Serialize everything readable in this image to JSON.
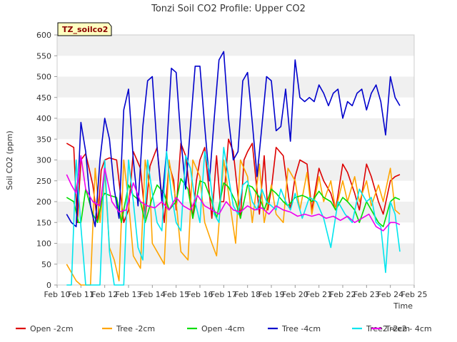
{
  "chart_data": {
    "type": "line",
    "title": "Tonzi Soil CO2 Profile: Upper CO2",
    "xlabel": "Time",
    "ylabel": "Soil CO2 (ppm)",
    "badge": "TZ_soilco2",
    "ylim": [
      0,
      600
    ],
    "y_ticks": [
      0,
      50,
      100,
      150,
      200,
      250,
      300,
      350,
      400,
      450,
      500,
      550,
      600
    ],
    "xlim": [
      10,
      25
    ],
    "x_ticks": [
      10,
      11,
      12,
      13,
      14,
      15,
      16,
      17,
      18,
      19,
      20,
      21,
      22,
      23,
      24,
      25
    ],
    "x_tick_labels": [
      "Feb 10",
      "Feb 11",
      "Feb 12",
      "Feb 13",
      "Feb 14",
      "Feb 15",
      "Feb 16",
      "Feb 17",
      "Feb 18",
      "Feb 19",
      "Feb 20",
      "Feb 21",
      "Feb 22",
      "Feb 23",
      "Feb 24",
      "Feb 25"
    ],
    "grid": "horizontal bands",
    "legend_position": "bottom",
    "series": [
      {
        "name": "Open -2cm",
        "color": "#dd0000",
        "x": [
          10.4,
          10.7,
          10.85,
          11.0,
          11.2,
          11.5,
          11.7,
          11.85,
          12.0,
          12.2,
          12.5,
          12.8,
          13.0,
          13.2,
          13.5,
          13.7,
          13.9,
          14.0,
          14.2,
          14.5,
          14.7,
          14.9,
          15.0,
          15.2,
          15.4,
          15.7,
          15.85,
          16.0,
          16.2,
          16.5,
          16.7,
          16.85,
          17.0,
          17.2,
          17.4,
          17.7,
          17.85,
          18.0,
          18.2,
          18.5,
          18.7,
          18.85,
          19.0,
          19.2,
          19.5,
          19.8,
          20.0,
          20.2,
          20.5,
          20.7,
          21.0,
          21.2,
          21.5,
          21.7,
          22.0,
          22.2,
          22.5,
          22.7,
          23.0,
          23.2,
          23.5,
          23.7,
          24.0,
          24.2,
          24.4
        ],
        "y": [
          340,
          330,
          150,
          300,
          315,
          240,
          150,
          275,
          300,
          305,
          300,
          150,
          180,
          320,
          280,
          160,
          285,
          300,
          330,
          150,
          290,
          250,
          180,
          340,
          310,
          160,
          250,
          300,
          330,
          160,
          310,
          200,
          200,
          350,
          320,
          160,
          300,
          320,
          340,
          170,
          310,
          180,
          230,
          330,
          310,
          180,
          260,
          300,
          290,
          180,
          280,
          250,
          220,
          180,
          290,
          270,
          220,
          180,
          290,
          260,
          200,
          170,
          250,
          260,
          265
        ]
      },
      {
        "name": "Tree -2cm",
        "color": "#ffa500",
        "x": [
          10.4,
          10.6,
          10.8,
          11.0,
          11.2,
          11.4,
          11.6,
          11.8,
          12.0,
          12.2,
          12.4,
          12.6,
          12.8,
          13.0,
          13.2,
          13.5,
          13.7,
          13.9,
          14.0,
          14.2,
          14.5,
          14.7,
          15.0,
          15.2,
          15.5,
          15.7,
          16.0,
          16.2,
          16.5,
          16.7,
          17.0,
          17.2,
          17.5,
          17.7,
          18.0,
          18.2,
          18.5,
          18.7,
          19.0,
          19.2,
          19.5,
          19.7,
          20.0,
          20.2,
          20.5,
          20.7,
          21.0,
          21.2,
          21.5,
          21.7,
          22.0,
          22.2,
          22.5,
          22.7,
          23.0,
          23.2,
          23.5,
          23.7,
          24.0,
          24.2,
          24.4
        ],
        "y": [
          50,
          30,
          10,
          0,
          0,
          0,
          280,
          150,
          270,
          90,
          60,
          10,
          300,
          200,
          70,
          40,
          300,
          230,
          100,
          80,
          50,
          300,
          200,
          80,
          60,
          300,
          260,
          150,
          100,
          70,
          300,
          220,
          100,
          300,
          260,
          150,
          290,
          150,
          240,
          170,
          150,
          280,
          250,
          180,
          270,
          170,
          260,
          200,
          250,
          180,
          250,
          200,
          260,
          200,
          250,
          190,
          240,
          200,
          280,
          180,
          170
        ]
      },
      {
        "name": "Open -4cm",
        "color": "#00dd00",
        "x": [
          10.4,
          10.7,
          10.9,
          11.0,
          11.2,
          11.5,
          11.7,
          11.9,
          12.0,
          12.2,
          12.5,
          12.7,
          13.0,
          13.2,
          13.5,
          13.7,
          14.0,
          14.2,
          14.5,
          14.7,
          15.0,
          15.2,
          15.5,
          15.7,
          16.0,
          16.2,
          16.5,
          16.7,
          17.0,
          17.2,
          17.5,
          17.7,
          18.0,
          18.2,
          18.5,
          18.7,
          19.0,
          19.2,
          19.5,
          19.7,
          20.0,
          20.3,
          20.5,
          20.7,
          21.0,
          21.2,
          21.5,
          21.7,
          22.0,
          22.2,
          22.5,
          22.7,
          23.0,
          23.2,
          23.5,
          23.7,
          24.0,
          24.2,
          24.4
        ],
        "y": [
          210,
          200,
          150,
          150,
          230,
          170,
          150,
          210,
          220,
          215,
          210,
          150,
          240,
          215,
          200,
          150,
          210,
          240,
          220,
          180,
          200,
          255,
          230,
          160,
          250,
          245,
          200,
          160,
          245,
          235,
          200,
          160,
          240,
          235,
          210,
          180,
          230,
          220,
          200,
          190,
          210,
          215,
          210,
          200,
          225,
          210,
          200,
          180,
          210,
          200,
          180,
          150,
          200,
          180,
          150,
          140,
          200,
          210,
          205
        ]
      },
      {
        "name": "Tree -4cm",
        "color": "#0000cc",
        "x": [
          10.4,
          10.6,
          10.8,
          11.0,
          11.2,
          11.4,
          11.6,
          11.8,
          12.0,
          12.2,
          12.4,
          12.6,
          12.8,
          13.0,
          13.2,
          13.4,
          13.6,
          13.8,
          14.0,
          14.2,
          14.4,
          14.6,
          14.8,
          15.0,
          15.2,
          15.4,
          15.6,
          15.8,
          16.0,
          16.2,
          16.4,
          16.6,
          16.8,
          17.0,
          17.2,
          17.4,
          17.6,
          17.8,
          18.0,
          18.2,
          18.4,
          18.6,
          18.8,
          19.0,
          19.2,
          19.4,
          19.6,
          19.8,
          20.0,
          20.2,
          20.4,
          20.6,
          20.8,
          21.0,
          21.2,
          21.4,
          21.6,
          21.8,
          22.0,
          22.2,
          22.4,
          22.6,
          22.8,
          23.0,
          23.2,
          23.4,
          23.6,
          23.8,
          24.0,
          24.2,
          24.4
        ],
        "y": [
          170,
          150,
          140,
          390,
          320,
          190,
          140,
          300,
          400,
          350,
          230,
          160,
          420,
          470,
          300,
          190,
          380,
          490,
          500,
          330,
          200,
          320,
          520,
          510,
          350,
          230,
          380,
          525,
          525,
          380,
          250,
          400,
          540,
          560,
          400,
          300,
          320,
          490,
          510,
          390,
          260,
          380,
          500,
          490,
          370,
          380,
          470,
          345,
          540,
          450,
          440,
          450,
          440,
          480,
          460,
          430,
          460,
          470,
          400,
          440,
          430,
          460,
          470,
          420,
          460,
          480,
          440,
          360,
          500,
          450,
          430
        ]
      },
      {
        "name": "Tree2 -2cm",
        "color": "#00e5ee",
        "x": [
          10.4,
          10.6,
          10.8,
          11.0,
          11.2,
          11.4,
          11.6,
          11.8,
          12.0,
          12.2,
          12.4,
          12.6,
          12.8,
          13.0,
          13.2,
          13.4,
          13.6,
          13.8,
          14.0,
          14.2,
          14.4,
          14.6,
          14.8,
          15.0,
          15.2,
          15.4,
          15.6,
          15.8,
          16.0,
          16.2,
          16.4,
          16.6,
          16.8,
          17.0,
          17.2,
          17.4,
          17.6,
          17.8,
          18.0,
          18.2,
          18.4,
          18.6,
          18.8,
          19.0,
          19.2,
          19.4,
          19.6,
          19.8,
          20.0,
          20.3,
          20.6,
          20.9,
          21.2,
          21.5,
          21.8,
          22.1,
          22.4,
          22.7,
          23.0,
          23.2,
          23.4,
          23.6,
          23.8,
          24.0,
          24.2,
          24.4
        ],
        "y": [
          0,
          0,
          300,
          140,
          0,
          0,
          0,
          0,
          300,
          80,
          0,
          0,
          0,
          300,
          200,
          90,
          60,
          300,
          220,
          150,
          130,
          320,
          220,
          150,
          130,
          310,
          280,
          200,
          150,
          320,
          270,
          170,
          150,
          330,
          260,
          190,
          170,
          240,
          250,
          200,
          180,
          230,
          200,
          190,
          180,
          230,
          200,
          180,
          220,
          160,
          210,
          200,
          160,
          90,
          200,
          170,
          150,
          230,
          200,
          210,
          150,
          140,
          30,
          200,
          170,
          80
        ]
      },
      {
        "name": "Tree2 - 4cm",
        "color": "#ee00ee",
        "x": [
          10.4,
          10.6,
          10.8,
          11.0,
          11.2,
          11.5,
          11.8,
          12.0,
          12.3,
          12.6,
          12.9,
          13.2,
          13.5,
          13.8,
          14.1,
          14.4,
          14.7,
          15.0,
          15.3,
          15.6,
          15.9,
          16.2,
          16.5,
          16.8,
          17.1,
          17.4,
          17.7,
          18.0,
          18.3,
          18.6,
          18.9,
          19.2,
          19.5,
          19.8,
          20.1,
          20.4,
          20.7,
          21.0,
          21.3,
          21.6,
          21.9,
          22.2,
          22.5,
          22.8,
          23.1,
          23.4,
          23.7,
          24.0,
          24.2,
          24.4
        ],
        "y": [
          265,
          240,
          220,
          310,
          230,
          200,
          190,
          280,
          200,
          175,
          180,
          245,
          200,
          190,
          185,
          200,
          180,
          210,
          190,
          180,
          215,
          190,
          180,
          170,
          200,
          180,
          175,
          190,
          180,
          185,
          170,
          190,
          180,
          175,
          165,
          170,
          165,
          170,
          160,
          165,
          155,
          165,
          150,
          160,
          170,
          140,
          130,
          150,
          150,
          145
        ]
      }
    ]
  }
}
